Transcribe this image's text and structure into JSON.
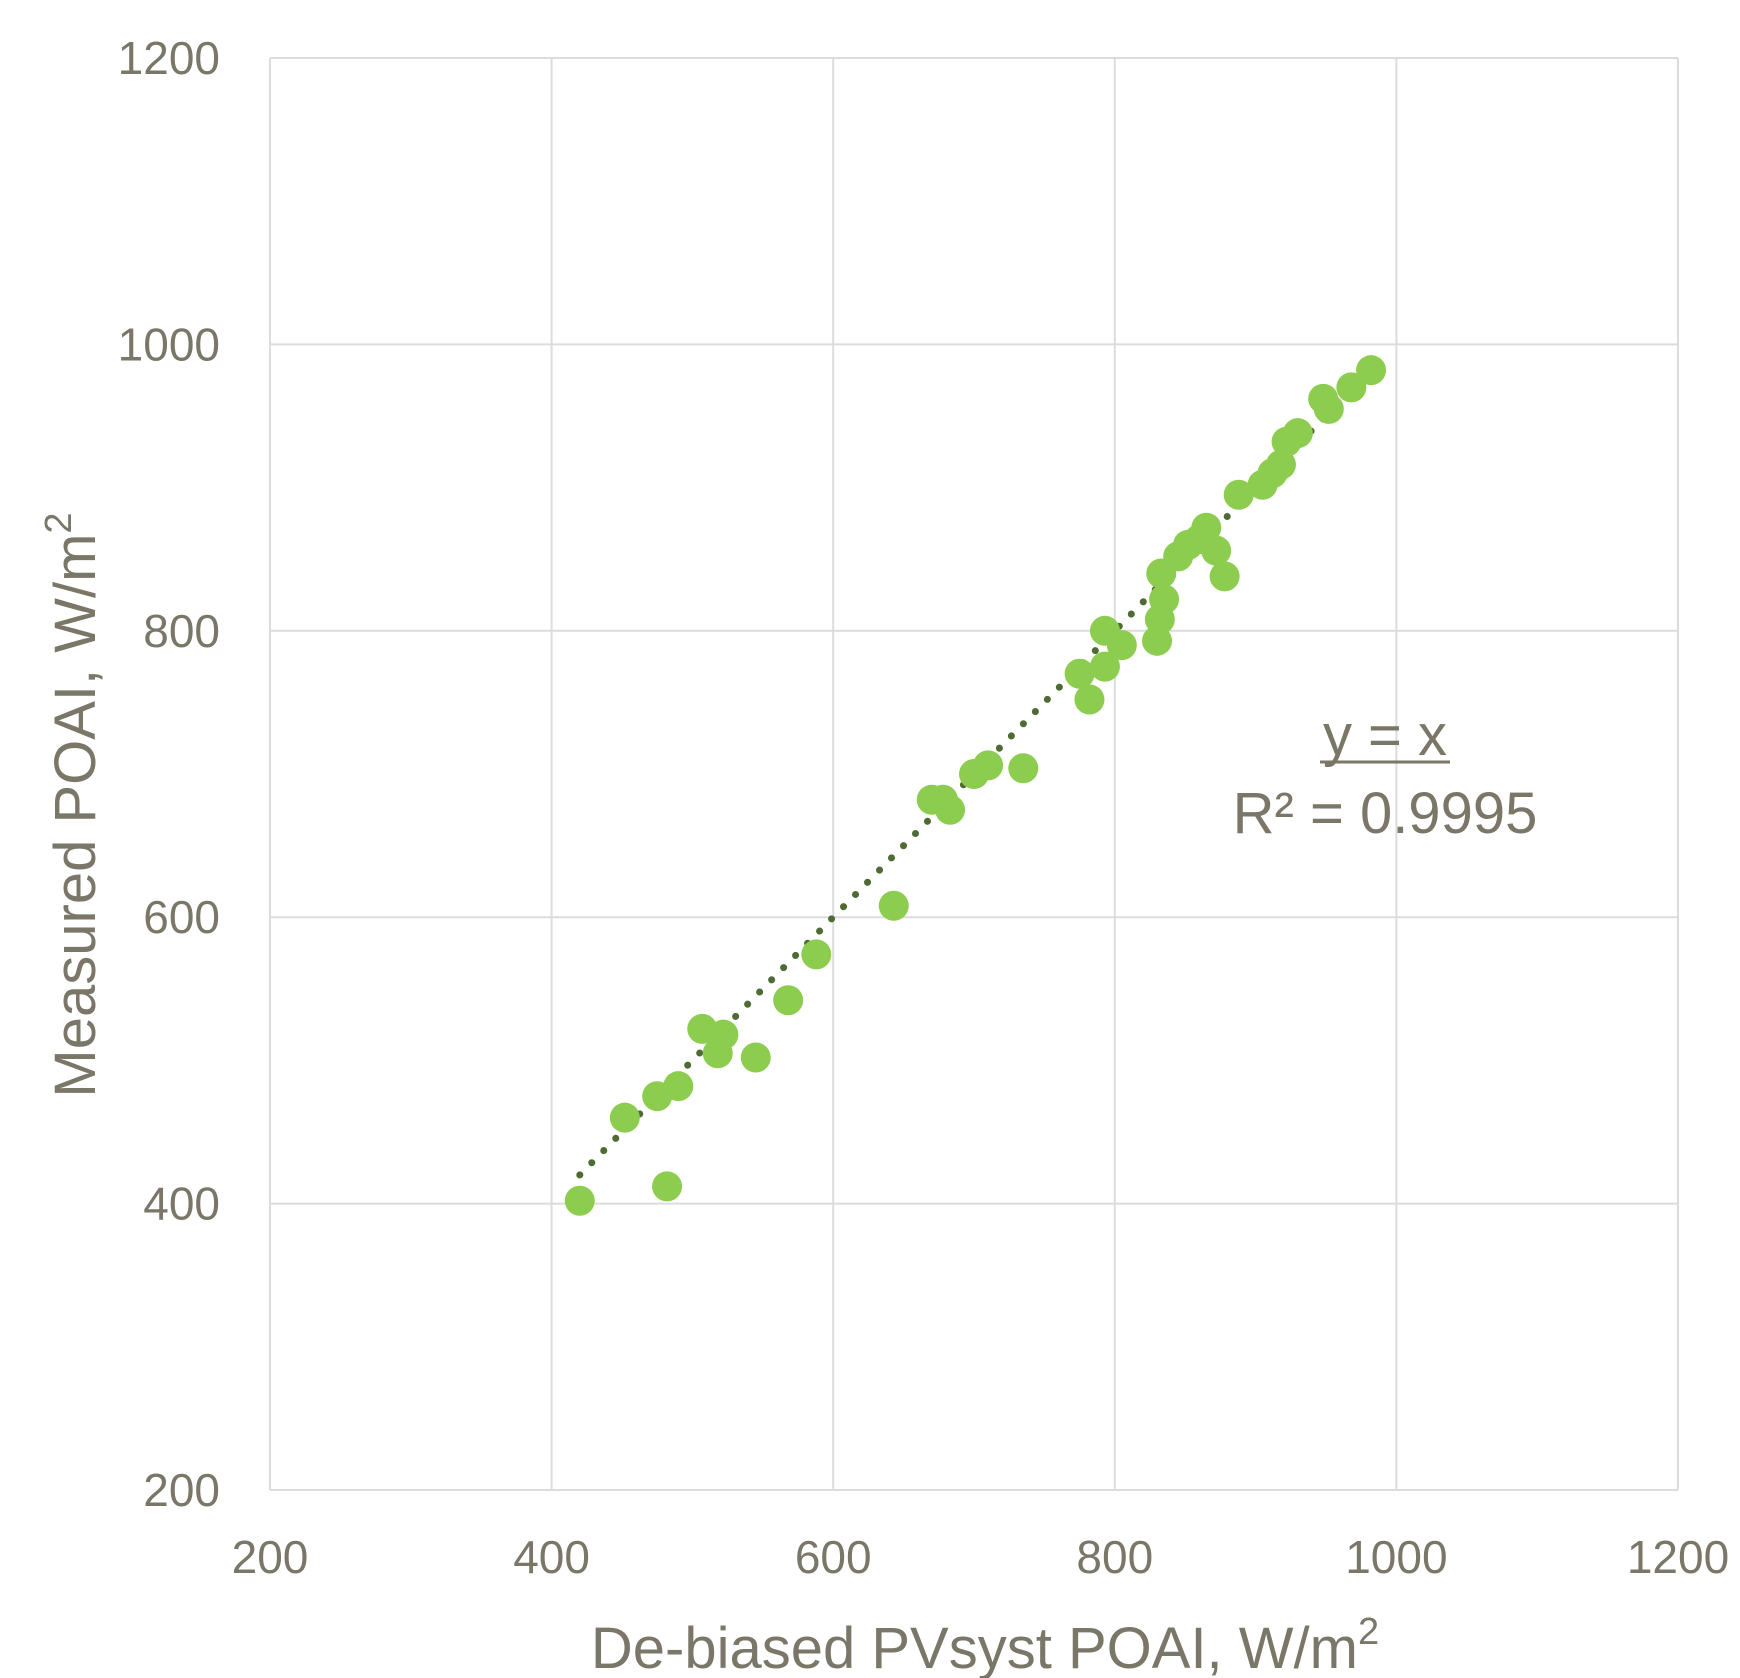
{
  "chart_data": {
    "type": "scatter",
    "xlabel": "De-biased PVsyst POAI, W/m",
    "xlabel_sup": "2",
    "ylabel": "Measured POAI, W/m",
    "ylabel_sup": "2",
    "xlim": [
      200,
      1200
    ],
    "ylim": [
      200,
      1200
    ],
    "xticks": [
      "200",
      "400",
      "600",
      "800",
      "1000",
      "1200"
    ],
    "yticks": [
      "200",
      "400",
      "600",
      "800",
      "1000",
      "1200"
    ],
    "grid": true,
    "legend": "none",
    "trendline": {
      "style": "dotted",
      "x_range": [
        420,
        980
      ],
      "equation": "y = x",
      "r2_text": "R² = 0.9995"
    },
    "series": [
      {
        "points": [
          [
            420,
            402
          ],
          [
            482,
            412
          ],
          [
            452,
            460
          ],
          [
            475,
            475
          ],
          [
            490,
            482
          ],
          [
            507,
            522
          ],
          [
            518,
            505
          ],
          [
            522,
            518
          ],
          [
            545,
            502
          ],
          [
            568,
            542
          ],
          [
            588,
            574
          ],
          [
            643,
            608
          ],
          [
            670,
            682
          ],
          [
            678,
            682
          ],
          [
            683,
            675
          ],
          [
            700,
            700
          ],
          [
            710,
            706
          ],
          [
            735,
            704
          ],
          [
            775,
            770
          ],
          [
            782,
            752
          ],
          [
            793,
            775
          ],
          [
            793,
            800
          ],
          [
            805,
            790
          ],
          [
            830,
            793
          ],
          [
            832,
            808
          ],
          [
            835,
            822
          ],
          [
            833,
            840
          ],
          [
            845,
            852
          ],
          [
            852,
            860
          ],
          [
            860,
            864
          ],
          [
            865,
            872
          ],
          [
            872,
            856
          ],
          [
            878,
            838
          ],
          [
            888,
            895
          ],
          [
            905,
            902
          ],
          [
            912,
            910
          ],
          [
            918,
            916
          ],
          [
            922,
            932
          ],
          [
            930,
            938
          ],
          [
            948,
            962
          ],
          [
            952,
            955
          ],
          [
            968,
            970
          ],
          [
            982,
            982
          ]
        ]
      }
    ],
    "colors": {
      "points": "#8ccc4e",
      "trendline": "#4f6b34",
      "grid": "#dcdcdc",
      "text": "#7a7668"
    }
  }
}
